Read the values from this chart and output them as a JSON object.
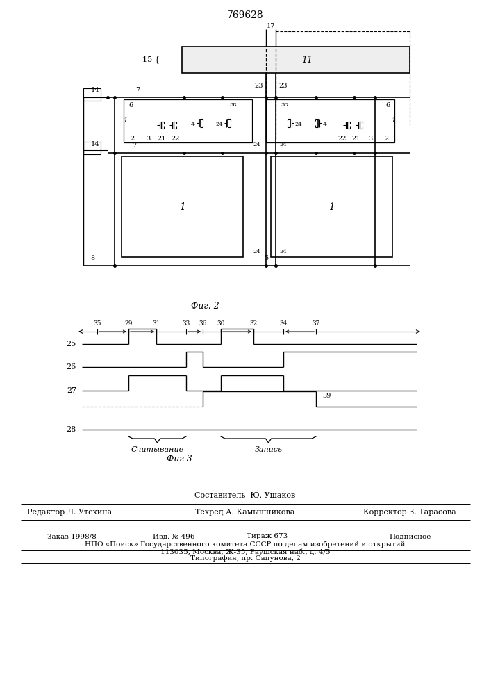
{
  "title": "769628",
  "fig2_label": "Фиг. 2",
  "fig3_label": "Фиг 3",
  "bg_color": "#ffffff",
  "line_color": "#000000",
  "read_label": "Считывание",
  "write_label": "Запись",
  "footer_composed": "Составитель  Ю. Ушаков",
  "footer_col1": "Редактор Л. Утехина",
  "footer_col2": "Техред А. Камышникова",
  "footer_col3": "Корректор З. Тарасова",
  "footer_order": "Заказ 1998/8",
  "footer_izd": "Изд. № 496",
  "footer_tirazh": "Тираж 673",
  "footer_podp": "Подписное",
  "footer_npo": "НПО «Поиск» Государственного комитета СССР по делам изобретений и открытий",
  "footer_addr": "113035, Москва, Ж-35, Раушская наб., д. 4/5",
  "footer_typo": "Типография, пр. Сапунова, 2"
}
